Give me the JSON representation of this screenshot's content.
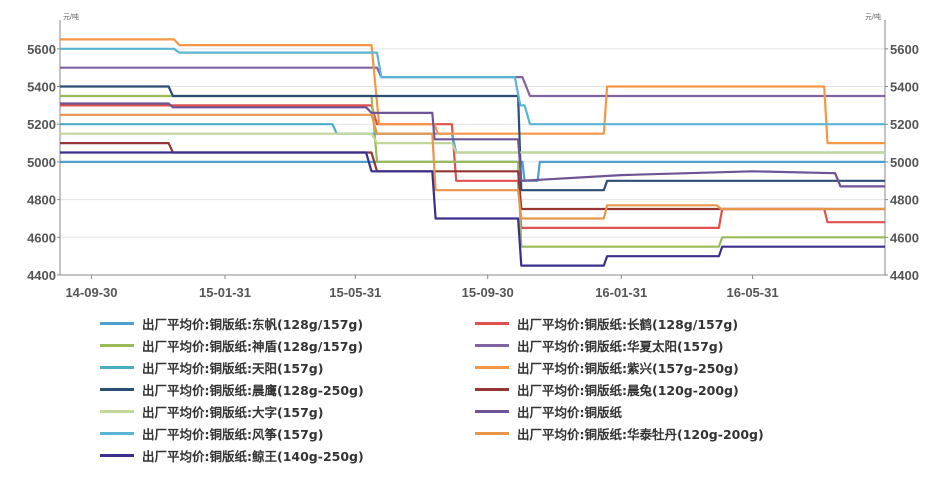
{
  "chart_data": {
    "type": "line",
    "unit_left": "元/吨",
    "unit_right": "元/吨",
    "ylim": [
      4400,
      5700
    ],
    "yticks": [
      4400,
      4600,
      4800,
      5000,
      5200,
      5400,
      5600
    ],
    "xlim": [
      "2014-09-01",
      "2016-09-30"
    ],
    "xticks": [
      {
        "date": "2014-09-30",
        "label": "14-09-30"
      },
      {
        "date": "2015-01-31",
        "label": "15-01-31"
      },
      {
        "date": "2015-05-31",
        "label": "15-05-31"
      },
      {
        "date": "2015-09-30",
        "label": "15-09-30"
      },
      {
        "date": "2016-01-31",
        "label": "16-01-31"
      },
      {
        "date": "2016-05-31",
        "label": "16-05-31"
      }
    ],
    "grid": "horizontal",
    "legend_position": "bottom",
    "series": [
      {
        "name": "出厂平均价:铜版纸:东帆(128g/157g)",
        "color": "#4f9fcf",
        "points": [
          [
            "2014-09-01",
            5000
          ],
          [
            "2015-11-01",
            5000
          ],
          [
            "2015-11-03",
            4900
          ],
          [
            "2015-11-15",
            4900
          ],
          [
            "2015-11-17",
            5000
          ],
          [
            "2016-09-30",
            5000
          ]
        ]
      },
      {
        "name": "出厂平均价:铜版纸:长鹤(128g/157g)",
        "color": "#e0524f",
        "points": [
          [
            "2014-09-01",
            5300
          ],
          [
            "2015-06-15",
            5300
          ],
          [
            "2015-06-20",
            5200
          ],
          [
            "2015-08-28",
            5200
          ],
          [
            "2015-09-01",
            4900
          ],
          [
            "2015-10-28",
            4900
          ],
          [
            "2015-10-31",
            4650
          ],
          [
            "2016-04-30",
            4650
          ],
          [
            "2016-05-03",
            4750
          ],
          [
            "2016-08-05",
            4750
          ],
          [
            "2016-08-08",
            4680
          ],
          [
            "2016-09-30",
            4680
          ]
        ]
      },
      {
        "name": "出厂平均价:铜版纸:神盾(128g/157g)",
        "color": "#9bbb59",
        "points": [
          [
            "2014-09-01",
            5350
          ],
          [
            "2015-06-15",
            5350
          ],
          [
            "2015-06-20",
            5000
          ],
          [
            "2015-10-28",
            5000
          ],
          [
            "2015-10-31",
            4550
          ],
          [
            "2016-04-30",
            4550
          ],
          [
            "2016-05-03",
            4600
          ],
          [
            "2016-09-30",
            4600
          ]
        ]
      },
      {
        "name": "出厂平均价:铜版纸:华夏太阳(157g)",
        "color": "#8064a2",
        "points": [
          [
            "2014-09-01",
            5500
          ],
          [
            "2015-06-20",
            5500
          ],
          [
            "2015-06-24",
            5450
          ],
          [
            "2015-11-01",
            5450
          ],
          [
            "2015-11-08",
            5350
          ],
          [
            "2016-09-30",
            5350
          ]
        ]
      },
      {
        "name": "出厂平均价:铜版纸:天阳(157g)",
        "color": "#4bacc6",
        "points": [
          [
            "2014-09-01",
            5200
          ],
          [
            "2015-05-10",
            5200
          ],
          [
            "2015-05-14",
            5150
          ],
          [
            "2015-08-28",
            5150
          ],
          [
            "2015-09-01",
            5050
          ],
          [
            "2016-09-30",
            5050
          ]
        ]
      },
      {
        "name": "出厂平均价:铜版纸:紫兴(157g-250g)",
        "color": "#f79646",
        "points": [
          [
            "2014-09-01",
            5650
          ],
          [
            "2014-12-15",
            5650
          ],
          [
            "2014-12-20",
            5620
          ],
          [
            "2015-06-15",
            5620
          ],
          [
            "2015-06-22",
            5200
          ],
          [
            "2015-08-12",
            5200
          ],
          [
            "2015-08-15",
            5150
          ],
          [
            "2016-01-15",
            5150
          ],
          [
            "2016-01-18",
            5400
          ],
          [
            "2016-08-05",
            5400
          ],
          [
            "2016-08-08",
            5100
          ],
          [
            "2016-09-30",
            5100
          ]
        ]
      },
      {
        "name": "出厂平均价:铜版纸:晨鹰(128g-250g)",
        "color": "#2c4d75",
        "points": [
          [
            "2014-09-01",
            5400
          ],
          [
            "2014-12-10",
            5400
          ],
          [
            "2014-12-14",
            5350
          ],
          [
            "2015-10-28",
            5350
          ],
          [
            "2015-10-31",
            4850
          ],
          [
            "2016-01-15",
            4850
          ],
          [
            "2016-01-18",
            4900
          ],
          [
            "2016-09-30",
            4900
          ]
        ]
      },
      {
        "name": "出厂平均价:铜版纸:晨兔(120g-200g)",
        "color": "#943634",
        "points": [
          [
            "2014-09-01",
            5100
          ],
          [
            "2014-12-10",
            5100
          ],
          [
            "2014-12-14",
            5050
          ],
          [
            "2015-06-15",
            5050
          ],
          [
            "2015-06-20",
            4950
          ],
          [
            "2015-10-28",
            4950
          ],
          [
            "2015-10-31",
            4750
          ],
          [
            "2016-09-30",
            4750
          ]
        ]
      },
      {
        "name": "出厂平均价:铜版纸:大字(157g)",
        "color": "#c3d69b",
        "points": [
          [
            "2014-09-01",
            5150
          ],
          [
            "2015-06-15",
            5150
          ],
          [
            "2015-06-20",
            5100
          ],
          [
            "2015-08-28",
            5100
          ],
          [
            "2015-09-01",
            5050
          ],
          [
            "2016-09-30",
            5050
          ]
        ]
      },
      {
        "name": "出厂平均价:铜版纸",
        "color": "#6e5494",
        "points": [
          [
            "2014-09-01",
            5310
          ],
          [
            "2014-12-10",
            5310
          ],
          [
            "2014-12-14",
            5290
          ],
          [
            "2015-06-10",
            5290
          ],
          [
            "2015-06-15",
            5260
          ],
          [
            "2015-08-10",
            5260
          ],
          [
            "2015-08-12",
            5120
          ],
          [
            "2015-10-28",
            5120
          ],
          [
            "2015-10-31",
            4900
          ],
          [
            "2016-01-31",
            4930
          ],
          [
            "2016-05-31",
            4950
          ],
          [
            "2016-08-15",
            4940
          ],
          [
            "2016-08-20",
            4870
          ],
          [
            "2016-09-30",
            4870
          ]
        ]
      },
      {
        "name": "出厂平均价:铜版纸:风筝(157g)",
        "color": "#5ab4d6",
        "points": [
          [
            "2014-09-01",
            5600
          ],
          [
            "2014-12-15",
            5600
          ],
          [
            "2014-12-20",
            5580
          ],
          [
            "2015-06-20",
            5580
          ],
          [
            "2015-06-24",
            5450
          ],
          [
            "2015-10-25",
            5450
          ],
          [
            "2015-10-30",
            5300
          ],
          [
            "2015-11-03",
            5300
          ],
          [
            "2015-11-08",
            5200
          ],
          [
            "2016-09-30",
            5200
          ]
        ]
      },
      {
        "name": "出厂平均价:铜版纸:华泰牡丹(120g-200g)",
        "color": "#e8964a",
        "points": [
          [
            "2014-09-01",
            5250
          ],
          [
            "2015-06-15",
            5250
          ],
          [
            "2015-06-20",
            5150
          ],
          [
            "2015-08-10",
            5150
          ],
          [
            "2015-08-13",
            4850
          ],
          [
            "2015-10-28",
            4850
          ],
          [
            "2015-10-31",
            4700
          ],
          [
            "2016-01-15",
            4700
          ],
          [
            "2016-01-18",
            4770
          ],
          [
            "2016-04-28",
            4770
          ],
          [
            "2016-05-02",
            4750
          ],
          [
            "2016-09-30",
            4750
          ]
        ]
      },
      {
        "name": "出厂平均价:铜版纸:鲸王(140g-250g)",
        "color": "#3a2f8c",
        "points": [
          [
            "2014-09-01",
            5050
          ],
          [
            "2015-06-10",
            5050
          ],
          [
            "2015-06-15",
            4950
          ],
          [
            "2015-08-10",
            4950
          ],
          [
            "2015-08-13",
            4700
          ],
          [
            "2015-10-28",
            4700
          ],
          [
            "2015-10-31",
            4450
          ],
          [
            "2016-01-15",
            4450
          ],
          [
            "2016-01-18",
            4500
          ],
          [
            "2016-04-30",
            4500
          ],
          [
            "2016-05-03",
            4550
          ],
          [
            "2016-09-30",
            4550
          ]
        ]
      }
    ]
  }
}
